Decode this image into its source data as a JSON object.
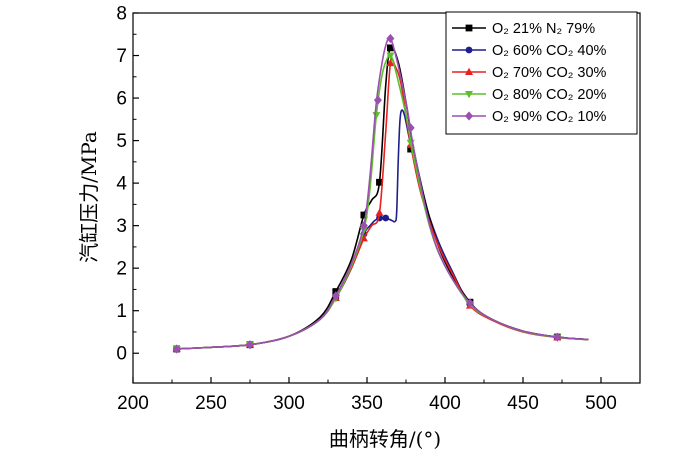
{
  "chart_data": {
    "type": "line",
    "title": "",
    "xlabel": "曲柄转角/(°)",
    "ylabel": "汽缸压力/MPa",
    "xlim": [
      200,
      525
    ],
    "ylim": [
      -0.7,
      8
    ],
    "xticks": [
      200,
      250,
      300,
      350,
      400,
      450,
      500
    ],
    "yticks": [
      0,
      1,
      2,
      3,
      4,
      5,
      6,
      7,
      8
    ],
    "grid": false,
    "legend": "top-right",
    "series": [
      {
        "name": "O₂ 21% N₂ 79%",
        "color": "#000000",
        "marker": "square",
        "x": [
          228,
          250,
          275,
          300,
          320,
          330,
          340,
          348,
          353,
          358,
          362,
          365,
          370,
          375,
          380,
          390,
          400,
          416,
          430,
          450,
          472,
          492
        ],
        "y": [
          0.1,
          0.14,
          0.2,
          0.4,
          0.85,
          1.45,
          2.2,
          3.25,
          3.6,
          4.02,
          6.3,
          7.18,
          6.85,
          5.9,
          4.78,
          3.2,
          2.15,
          1.2,
          0.8,
          0.52,
          0.38,
          0.32
        ],
        "marker_x": [
          228,
          275,
          330,
          348,
          358,
          365,
          378,
          416,
          472
        ],
        "marker_y": [
          0.1,
          0.2,
          1.45,
          3.25,
          4.02,
          7.18,
          4.8,
          1.2,
          0.38
        ]
      },
      {
        "name": "O₂ 60% CO₂ 40%",
        "color": "#1f1f8c",
        "marker": "circle",
        "x": [
          228,
          250,
          275,
          300,
          320,
          330,
          340,
          348,
          352,
          355,
          358,
          362,
          366,
          368,
          369,
          370,
          371,
          372,
          374,
          378,
          385,
          395,
          405,
          416,
          430,
          450,
          472,
          492
        ],
        "y": [
          0.1,
          0.14,
          0.2,
          0.4,
          0.8,
          1.3,
          2.0,
          2.8,
          3.0,
          3.12,
          3.18,
          3.18,
          3.12,
          3.1,
          3.3,
          4.5,
          5.4,
          5.7,
          5.6,
          4.9,
          3.8,
          2.7,
          1.9,
          1.15,
          0.8,
          0.52,
          0.38,
          0.32
        ],
        "marker_x": [
          228,
          275,
          330,
          348,
          358,
          362
        ],
        "marker_y": [
          0.1,
          0.2,
          1.3,
          2.8,
          3.18,
          3.18
        ]
      },
      {
        "name": "O₂ 70% CO₂ 30%",
        "color": "#e8211c",
        "marker": "triangle-up",
        "x": [
          228,
          250,
          275,
          300,
          320,
          330,
          340,
          348,
          353,
          358,
          362,
          365,
          368,
          372,
          378,
          385,
          395,
          405,
          416,
          430,
          450,
          472,
          492
        ],
        "y": [
          0.1,
          0.14,
          0.2,
          0.4,
          0.8,
          1.3,
          2.0,
          2.7,
          3.0,
          3.3,
          5.2,
          6.82,
          6.75,
          6.3,
          4.9,
          3.7,
          2.6,
          1.85,
          1.12,
          0.78,
          0.5,
          0.37,
          0.32
        ],
        "marker_x": [
          228,
          275,
          330,
          348,
          358,
          365,
          378,
          416,
          472
        ],
        "marker_y": [
          0.1,
          0.2,
          1.3,
          2.7,
          3.3,
          6.82,
          4.9,
          1.12,
          0.37
        ]
      },
      {
        "name": "O₂ 80% CO₂ 20%",
        "color": "#5cbf2a",
        "marker": "triangle-down",
        "x": [
          228,
          250,
          275,
          300,
          320,
          330,
          340,
          348,
          352,
          356,
          360,
          364,
          366,
          370,
          375,
          380,
          390,
          400,
          416,
          430,
          450,
          472,
          492
        ],
        "y": [
          0.1,
          0.14,
          0.2,
          0.4,
          0.8,
          1.3,
          2.05,
          2.9,
          3.9,
          5.6,
          6.6,
          7.0,
          6.95,
          6.4,
          5.6,
          4.6,
          3.0,
          2.05,
          1.15,
          0.8,
          0.51,
          0.37,
          0.32
        ],
        "marker_x": [
          228,
          275,
          330,
          348,
          356,
          365,
          378,
          416,
          472
        ],
        "marker_y": [
          0.1,
          0.2,
          1.3,
          2.9,
          5.6,
          7.0,
          4.95,
          1.15,
          0.37
        ]
      },
      {
        "name": "O₂ 90% CO₂ 10%",
        "color": "#9b4fb0",
        "marker": "diamond",
        "x": [
          228,
          250,
          275,
          300,
          320,
          330,
          340,
          348,
          352,
          356,
          360,
          363,
          365,
          367,
          371,
          376,
          380,
          390,
          400,
          416,
          430,
          450,
          472,
          492
        ],
        "y": [
          0.1,
          0.14,
          0.2,
          0.4,
          0.8,
          1.35,
          2.1,
          3.0,
          4.2,
          5.9,
          6.9,
          7.35,
          7.4,
          7.2,
          6.6,
          5.7,
          4.8,
          3.05,
          2.05,
          1.18,
          0.8,
          0.52,
          0.38,
          0.32
        ],
        "marker_x": [
          228,
          275,
          330,
          348,
          357,
          365,
          378,
          416,
          472
        ],
        "marker_y": [
          0.1,
          0.2,
          1.35,
          3.0,
          5.95,
          7.4,
          5.3,
          1.18,
          0.38
        ]
      }
    ]
  }
}
